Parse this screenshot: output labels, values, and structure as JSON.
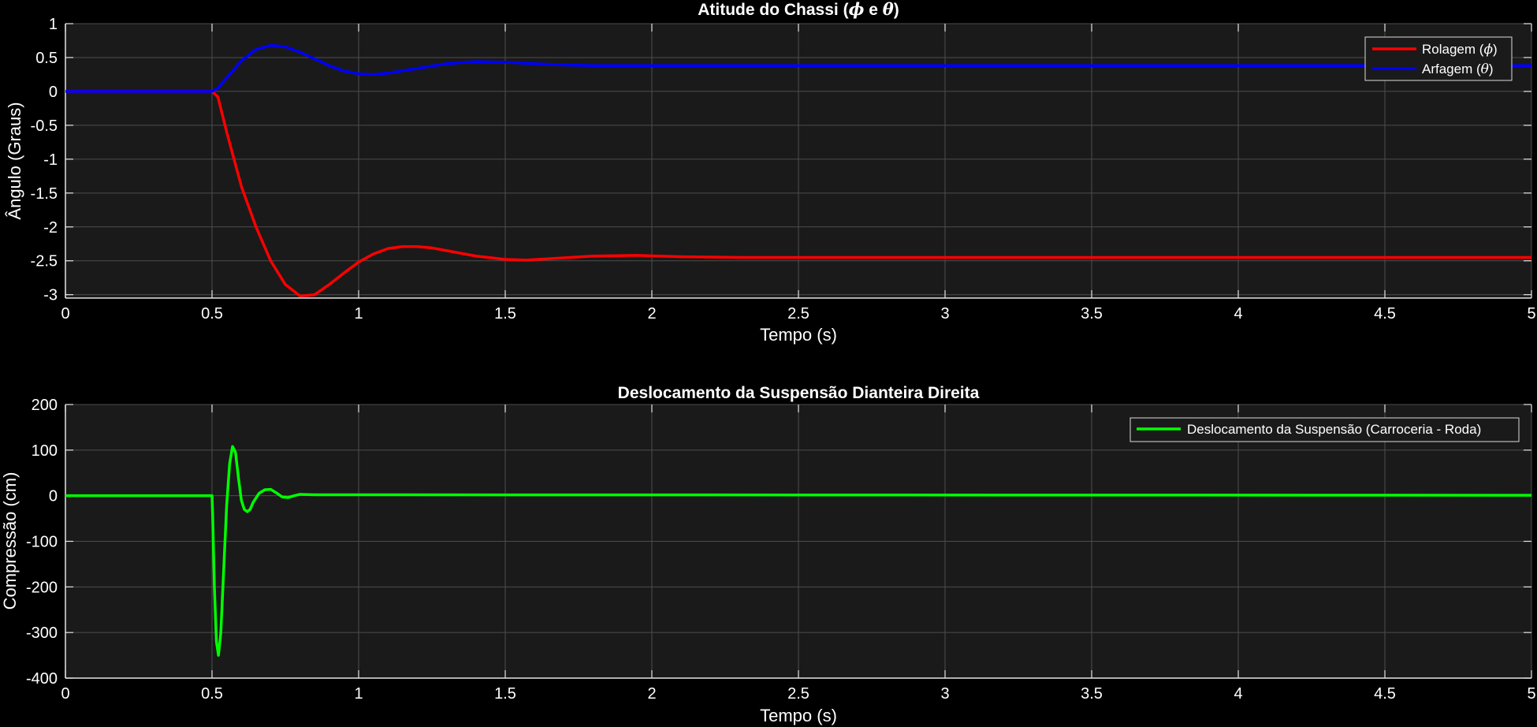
{
  "chart_data": [
    {
      "type": "line",
      "title_text": "Atitude do Chassi (",
      "title_phi": "ϕ",
      "title_e": "e",
      "title_theta": "θ",
      "title_close": ")",
      "xlabel": "Tempo (s)",
      "ylabel": "Ângulo (Graus)",
      "xlim": [
        0,
        5
      ],
      "ylim": [
        -3.05,
        1
      ],
      "xticks": [
        0,
        0.5,
        1,
        1.5,
        2,
        2.5,
        3,
        3.5,
        4,
        4.5,
        5
      ],
      "xtick_labels": [
        "0",
        "0.5",
        "1",
        "1.5",
        "2",
        "2.5",
        "3",
        "3.5",
        "4",
        "4.5",
        "5"
      ],
      "yticks": [
        1,
        0.5,
        0,
        -0.5,
        -1,
        -1.5,
        -2,
        -2.5,
        -3
      ],
      "ytick_labels": [
        "1",
        "0.5",
        "0",
        "-0.5",
        "-1",
        "-1.5",
        "-2",
        "-2.5",
        "-3"
      ],
      "grid": true,
      "legend_position": "top-right",
      "background": "#1a1a1a",
      "series": [
        {
          "name": "Rolagem",
          "symbol": "ϕ",
          "color": "#ff0000",
          "points": [
            [
              0,
              0
            ],
            [
              0.5,
              0
            ],
            [
              0.52,
              -0.08
            ],
            [
              0.55,
              -0.6
            ],
            [
              0.6,
              -1.4
            ],
            [
              0.65,
              -2.0
            ],
            [
              0.7,
              -2.5
            ],
            [
              0.75,
              -2.85
            ],
            [
              0.8,
              -3.02
            ],
            [
              0.85,
              -3.0
            ],
            [
              0.9,
              -2.85
            ],
            [
              0.95,
              -2.68
            ],
            [
              1.0,
              -2.52
            ],
            [
              1.05,
              -2.4
            ],
            [
              1.1,
              -2.32
            ],
            [
              1.15,
              -2.29
            ],
            [
              1.2,
              -2.29
            ],
            [
              1.25,
              -2.31
            ],
            [
              1.3,
              -2.35
            ],
            [
              1.4,
              -2.43
            ],
            [
              1.5,
              -2.48
            ],
            [
              1.57,
              -2.49
            ],
            [
              1.65,
              -2.47
            ],
            [
              1.8,
              -2.43
            ],
            [
              1.95,
              -2.42
            ],
            [
              2.1,
              -2.44
            ],
            [
              2.3,
              -2.45
            ],
            [
              2.6,
              -2.45
            ],
            [
              5,
              -2.45
            ]
          ]
        },
        {
          "name": "Arfagem",
          "symbol": "θ",
          "color": "#0000ff",
          "points": [
            [
              0,
              0
            ],
            [
              0.5,
              0
            ],
            [
              0.52,
              0.05
            ],
            [
              0.55,
              0.2
            ],
            [
              0.6,
              0.45
            ],
            [
              0.65,
              0.62
            ],
            [
              0.7,
              0.68
            ],
            [
              0.75,
              0.66
            ],
            [
              0.8,
              0.58
            ],
            [
              0.85,
              0.48
            ],
            [
              0.9,
              0.38
            ],
            [
              0.95,
              0.3
            ],
            [
              1.0,
              0.26
            ],
            [
              1.05,
              0.25
            ],
            [
              1.1,
              0.27
            ],
            [
              1.2,
              0.34
            ],
            [
              1.3,
              0.41
            ],
            [
              1.4,
              0.44
            ],
            [
              1.5,
              0.43
            ],
            [
              1.6,
              0.41
            ],
            [
              1.7,
              0.39
            ],
            [
              1.8,
              0.38
            ],
            [
              2.0,
              0.38
            ],
            [
              2.5,
              0.38
            ],
            [
              5,
              0.38
            ]
          ]
        }
      ]
    },
    {
      "type": "line",
      "title": "Deslocamento da Suspensão Dianteira Direita",
      "xlabel": "Tempo (s)",
      "ylabel": "Compressão (cm)",
      "xlim": [
        0,
        5
      ],
      "ylim": [
        -400,
        200
      ],
      "xticks": [
        0,
        0.5,
        1,
        1.5,
        2,
        2.5,
        3,
        3.5,
        4,
        4.5,
        5
      ],
      "xtick_labels": [
        "0",
        "0.5",
        "1",
        "1.5",
        "2",
        "2.5",
        "3",
        "3.5",
        "4",
        "4.5",
        "5"
      ],
      "yticks": [
        200,
        100,
        0,
        -100,
        -200,
        -300,
        -400
      ],
      "ytick_labels": [
        "200",
        "100",
        "0",
        "-100",
        "-200",
        "-300",
        "-400"
      ],
      "grid": true,
      "legend_position": "top-right",
      "background": "#1a1a1a",
      "series": [
        {
          "name": "Deslocamento da Suspensão (Carroceria - Roda)",
          "color": "#00ff00",
          "points": [
            [
              0,
              0
            ],
            [
              0.5,
              0
            ],
            [
              0.502,
              -40
            ],
            [
              0.508,
              -200
            ],
            [
              0.515,
              -320
            ],
            [
              0.522,
              -350
            ],
            [
              0.53,
              -300
            ],
            [
              0.54,
              -160
            ],
            [
              0.55,
              -20
            ],
            [
              0.56,
              70
            ],
            [
              0.57,
              108
            ],
            [
              0.58,
              95
            ],
            [
              0.59,
              40
            ],
            [
              0.6,
              -10
            ],
            [
              0.61,
              -30
            ],
            [
              0.62,
              -35
            ],
            [
              0.63,
              -30
            ],
            [
              0.64,
              -15
            ],
            [
              0.66,
              5
            ],
            [
              0.68,
              13
            ],
            [
              0.7,
              14
            ],
            [
              0.72,
              6
            ],
            [
              0.74,
              -3
            ],
            [
              0.76,
              -4
            ],
            [
              0.78,
              0
            ],
            [
              0.8,
              3
            ],
            [
              0.85,
              2
            ],
            [
              1.0,
              2
            ],
            [
              5,
              1
            ]
          ]
        }
      ]
    }
  ]
}
